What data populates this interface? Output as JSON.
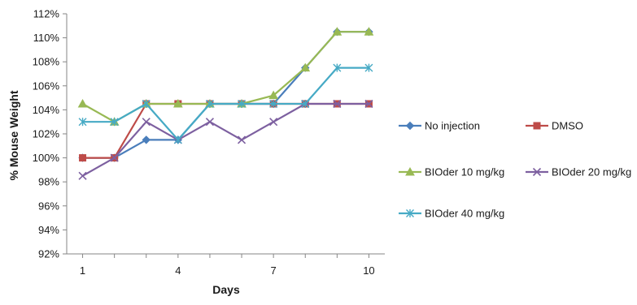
{
  "chart_data": {
    "type": "line",
    "title": "",
    "xlabel": "Days",
    "ylabel": "% Mouse Weight",
    "x": [
      1,
      2,
      3,
      4,
      5,
      6,
      7,
      8,
      9,
      10
    ],
    "x_ticks": [
      1,
      4,
      7,
      10
    ],
    "x_tick_labels": [
      "1",
      "4",
      "7",
      "10"
    ],
    "xlim": [
      0.5,
      10.5
    ],
    "ylim": [
      92,
      112
    ],
    "y_ticks": [
      92,
      94,
      96,
      98,
      100,
      102,
      104,
      106,
      108,
      110,
      112
    ],
    "y_tick_labels": [
      "92%",
      "94%",
      "96%",
      "98%",
      "100%",
      "102%",
      "104%",
      "106%",
      "108%",
      "110%",
      "112%"
    ],
    "grid": false,
    "legend_position": "right",
    "series": [
      {
        "name": "No injection",
        "color": "#4a7ebb",
        "marker": "diamond",
        "values": [
          100,
          100,
          101.5,
          101.5,
          104.5,
          104.5,
          104.5,
          107.5,
          110.5,
          110.5
        ]
      },
      {
        "name": "DMSO",
        "color": "#be4b48",
        "marker": "square",
        "values": [
          100,
          100,
          104.5,
          104.5,
          104.5,
          104.5,
          104.5,
          104.5,
          104.5,
          104.5
        ]
      },
      {
        "name": "BIOder 10 mg/kg",
        "color": "#98b954",
        "marker": "triangle",
        "values": [
          104.5,
          103,
          104.5,
          104.5,
          104.5,
          104.5,
          105.2,
          107.5,
          110.5,
          110.5
        ]
      },
      {
        "name": "BIOder 20 mg/kg",
        "color": "#7d60a0",
        "marker": "x",
        "values": [
          98.5,
          100,
          103,
          101.5,
          103,
          101.5,
          103,
          104.5,
          104.5,
          104.5
        ]
      },
      {
        "name": "BIOder 40 mg/kg",
        "color": "#46aac5",
        "marker": "star",
        "values": [
          103,
          103,
          104.5,
          101.5,
          104.5,
          104.5,
          104.5,
          104.5,
          107.5,
          107.5
        ]
      }
    ]
  }
}
